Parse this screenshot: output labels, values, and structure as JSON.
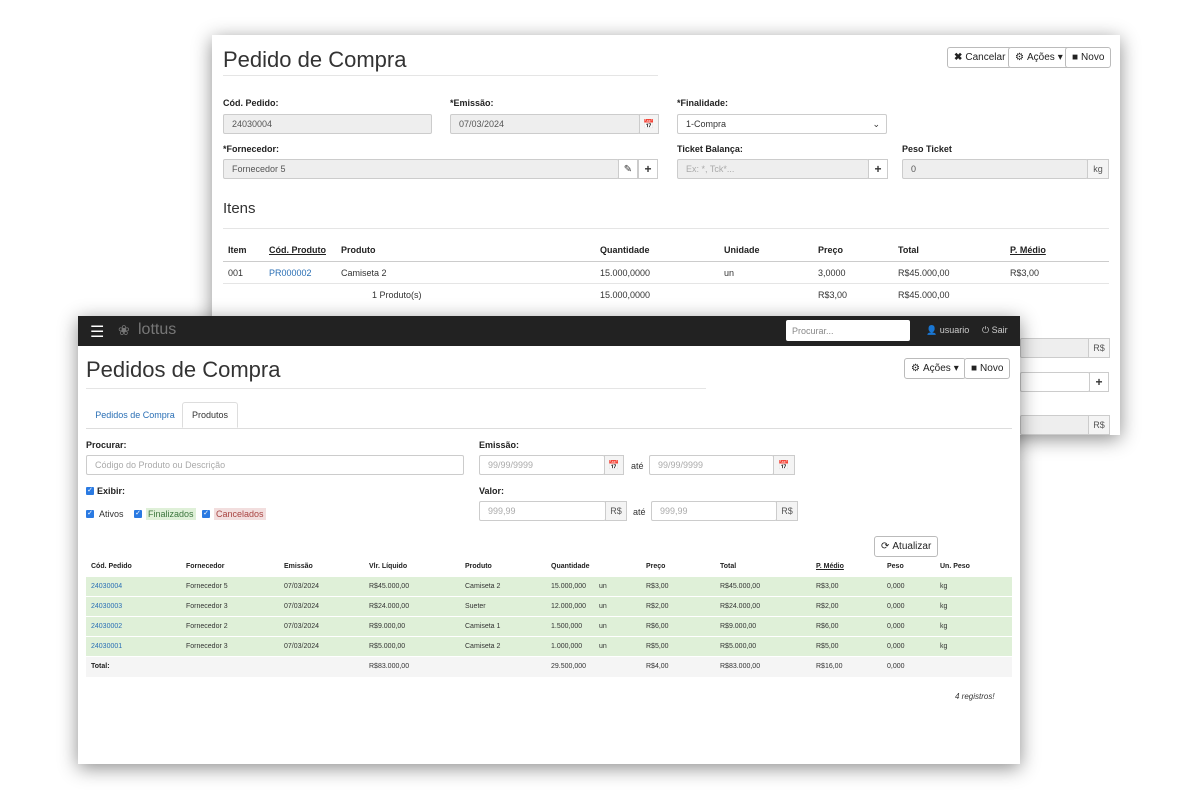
{
  "back": {
    "title": "Pedido de Compra",
    "buttons": {
      "cancel": "Cancelar",
      "actions": "Ações",
      "new": "Novo"
    },
    "labels": {
      "cod_pedido": "Cód. Pedido:",
      "emissao": "*Emissão:",
      "finalidade": "*Finalidade:",
      "fornecedor": "*Fornecedor:",
      "ticket": "Ticket Balança:",
      "peso_ticket": "Peso Ticket"
    },
    "values": {
      "cod_pedido": "24030004",
      "emissao": "07/03/2024",
      "finalidade": "1-Compra",
      "fornecedor": "Fornecedor 5",
      "peso_ticket": "0",
      "peso_unit": "kg"
    },
    "placeholders": {
      "ticket": "Ex: *, Tck*..."
    },
    "itens_title": "Itens",
    "headers": {
      "item": "Item",
      "cod_produto": "Cód. Produto",
      "produto": "Produto",
      "quantidade": "Quantidade",
      "unidade": "Unidade",
      "preco": "Preço",
      "total": "Total",
      "p_medio": "P. Médio"
    },
    "row": {
      "item": "001",
      "cod_produto": "PR000002",
      "produto": "Camiseta 2",
      "quantidade": "15.000,0000",
      "unidade": "un",
      "preco": "3,0000",
      "total": "R$45.000,00",
      "p_medio": "R$3,00"
    },
    "footer": {
      "produtos": "1 Produto(s)",
      "quantidade": "15.000,0000",
      "preco": "R$3,00",
      "total": "R$45.000,00"
    },
    "currency": "R$"
  },
  "front": {
    "brand": "lottus",
    "search_placeholder": "Procurar...",
    "user": "usuario",
    "logout": "Sair",
    "title": "Pedidos de Compra",
    "buttons": {
      "actions": "Ações",
      "new": "Novo",
      "refresh": "Atualizar"
    },
    "tabs": [
      "Pedidos de Compra",
      "Produtos"
    ],
    "labels": {
      "procurar": "Procurar:",
      "emissao": "Emissão:",
      "exibir": "Exibir:",
      "valor": "Valor:",
      "ate": "até",
      "ate2": "até"
    },
    "placeholders": {
      "procurar": "Código do Produto ou Descrição",
      "data_ini": "99/99/9999",
      "data_fim": "99/99/9999",
      "valor_ini": "999,99",
      "valor_fim": "999,99"
    },
    "currency": "R$",
    "filters": [
      "Ativos",
      "Finalizados",
      "Cancelados"
    ],
    "headers": [
      "Cód. Pedido",
      "Fornecedor",
      "Emissão",
      "Vlr. Líquido",
      "Produto",
      "Quantidade",
      "Preço",
      "Total",
      "P. Médio",
      "Peso",
      "Un. Peso"
    ],
    "rows": [
      [
        "24030004",
        "Fornecedor 5",
        "07/03/2024",
        "R$45.000,00",
        "Camiseta 2",
        "15.000,000",
        "un",
        "R$3,00",
        "R$45.000,00",
        "R$3,00",
        "0,000",
        "kg"
      ],
      [
        "24030003",
        "Fornecedor 3",
        "07/03/2024",
        "R$24.000,00",
        "Sueter",
        "12.000,000",
        "un",
        "R$2,00",
        "R$24.000,00",
        "R$2,00",
        "0,000",
        "kg"
      ],
      [
        "24030002",
        "Fornecedor 2",
        "07/03/2024",
        "R$9.000,00",
        "Camiseta 1",
        "1.500,000",
        "un",
        "R$6,00",
        "R$9.000,00",
        "R$6,00",
        "0,000",
        "kg"
      ],
      [
        "24030001",
        "Fornecedor 3",
        "07/03/2024",
        "R$5.000,00",
        "Camiseta 2",
        "1.000,000",
        "un",
        "R$5,00",
        "R$5.000,00",
        "R$5,00",
        "0,000",
        "kg"
      ]
    ],
    "total": {
      "label": "Total:",
      "vlr_liquido": "R$83.000,00",
      "quantidade": "29.500,000",
      "preco": "R$4,00",
      "total": "R$83.000,00",
      "p_medio": "R$16,00",
      "peso": "0,000"
    },
    "records": "4 registros!"
  }
}
